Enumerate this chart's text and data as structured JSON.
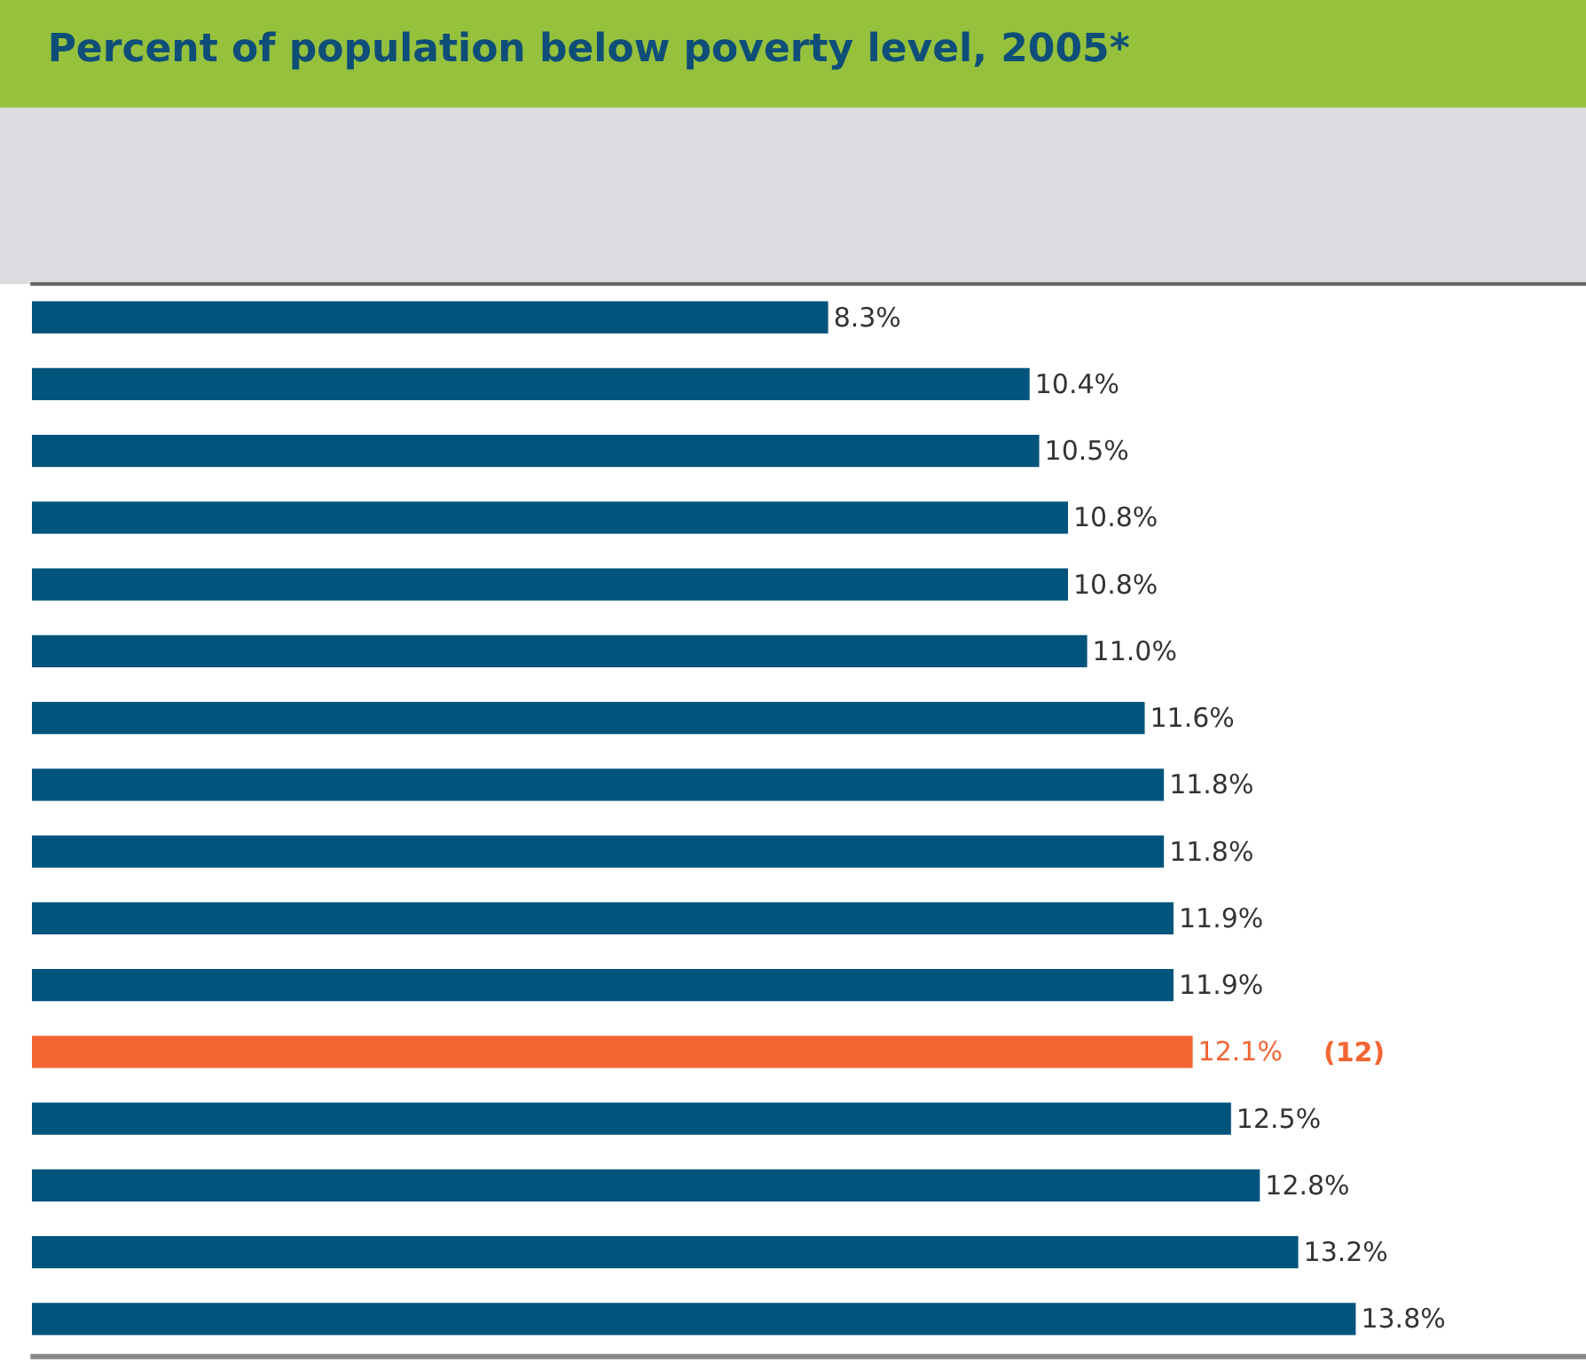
{
  "chart_data": {
    "type": "bar",
    "orientation": "horizontal",
    "title": "Percent of population below poverty level, 2005*",
    "categories": [
      null,
      null,
      null,
      null,
      null,
      null,
      null,
      null,
      null,
      null,
      null,
      null,
      null,
      null,
      null,
      null
    ],
    "values": [
      8.3,
      10.4,
      10.5,
      10.8,
      10.8,
      11.0,
      11.6,
      11.8,
      11.8,
      11.9,
      11.9,
      12.1,
      12.5,
      12.8,
      13.2,
      13.8
    ],
    "value_labels": [
      "8.3%",
      "10.4%",
      "10.5%",
      "10.8%",
      "10.8%",
      "11.0%",
      "11.6%",
      "11.8%",
      "11.8%",
      "11.9%",
      "11.9%",
      "12.1%",
      "12.5%",
      "12.8%",
      "13.2%",
      "13.8%"
    ],
    "colors": [
      "#01547c",
      "#01547c",
      "#01547c",
      "#01547c",
      "#01547c",
      "#01547c",
      "#01547c",
      "#01547c",
      "#01547c",
      "#01547c",
      "#01547c",
      "#f26532",
      "#01547c",
      "#01547c",
      "#01547c",
      "#01547c"
    ],
    "xlim": [
      0,
      16.2
    ],
    "annotations": [
      "(12)"
    ]
  }
}
